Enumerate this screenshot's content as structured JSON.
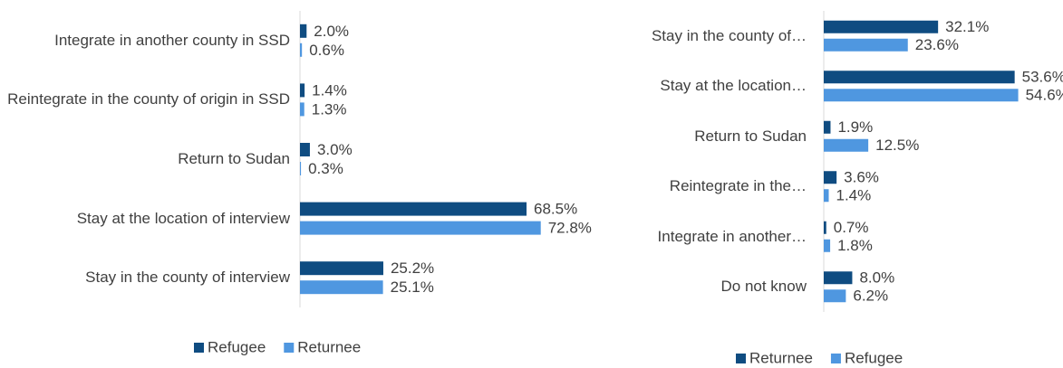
{
  "chart_data": [
    {
      "type": "bar",
      "orientation": "horizontal",
      "categories": [
        "Integrate in another county in SSD",
        "Reintegrate in the county of origin in SSD",
        "Return to Sudan",
        "Stay at the location of interview",
        "Stay in the county of interview"
      ],
      "series": [
        {
          "name": "Refugee",
          "color": "#0f4c81",
          "values": [
            2.0,
            1.4,
            3.0,
            68.5,
            25.2
          ],
          "value_labels": [
            "2.0%",
            "1.4%",
            "3.0%",
            "68.5%",
            "25.2%"
          ]
        },
        {
          "name": "Returnee",
          "color": "#4f97e0",
          "values": [
            0.6,
            1.3,
            0.3,
            72.8,
            25.1
          ],
          "value_labels": [
            "0.6%",
            "1.3%",
            "0.3%",
            "72.8%",
            "25.1%"
          ]
        }
      ],
      "xlim": [
        0,
        100
      ],
      "legend": "bottom"
    },
    {
      "type": "bar",
      "orientation": "horizontal",
      "categories": [
        "Stay in the county of…",
        "Stay at the location…",
        "Return to Sudan",
        "Reintegrate in the…",
        "Integrate in another…",
        "Do not know"
      ],
      "series": [
        {
          "name": "Returnee",
          "color": "#0f4c81",
          "values": [
            32.1,
            53.6,
            1.9,
            3.6,
            0.7,
            8.0
          ],
          "value_labels": [
            "32.1%",
            "53.6%",
            "1.9%",
            "3.6%",
            "0.7%",
            "8.0%"
          ]
        },
        {
          "name": "Refugee",
          "color": "#4f97e0",
          "values": [
            23.6,
            54.6,
            12.5,
            1.4,
            1.8,
            6.2
          ],
          "value_labels": [
            "23.6%",
            "54.6%",
            "12.5%",
            "1.4%",
            "1.8%",
            "6.2%"
          ]
        }
      ],
      "xlim": [
        0,
        100
      ],
      "legend": "bottom"
    }
  ]
}
